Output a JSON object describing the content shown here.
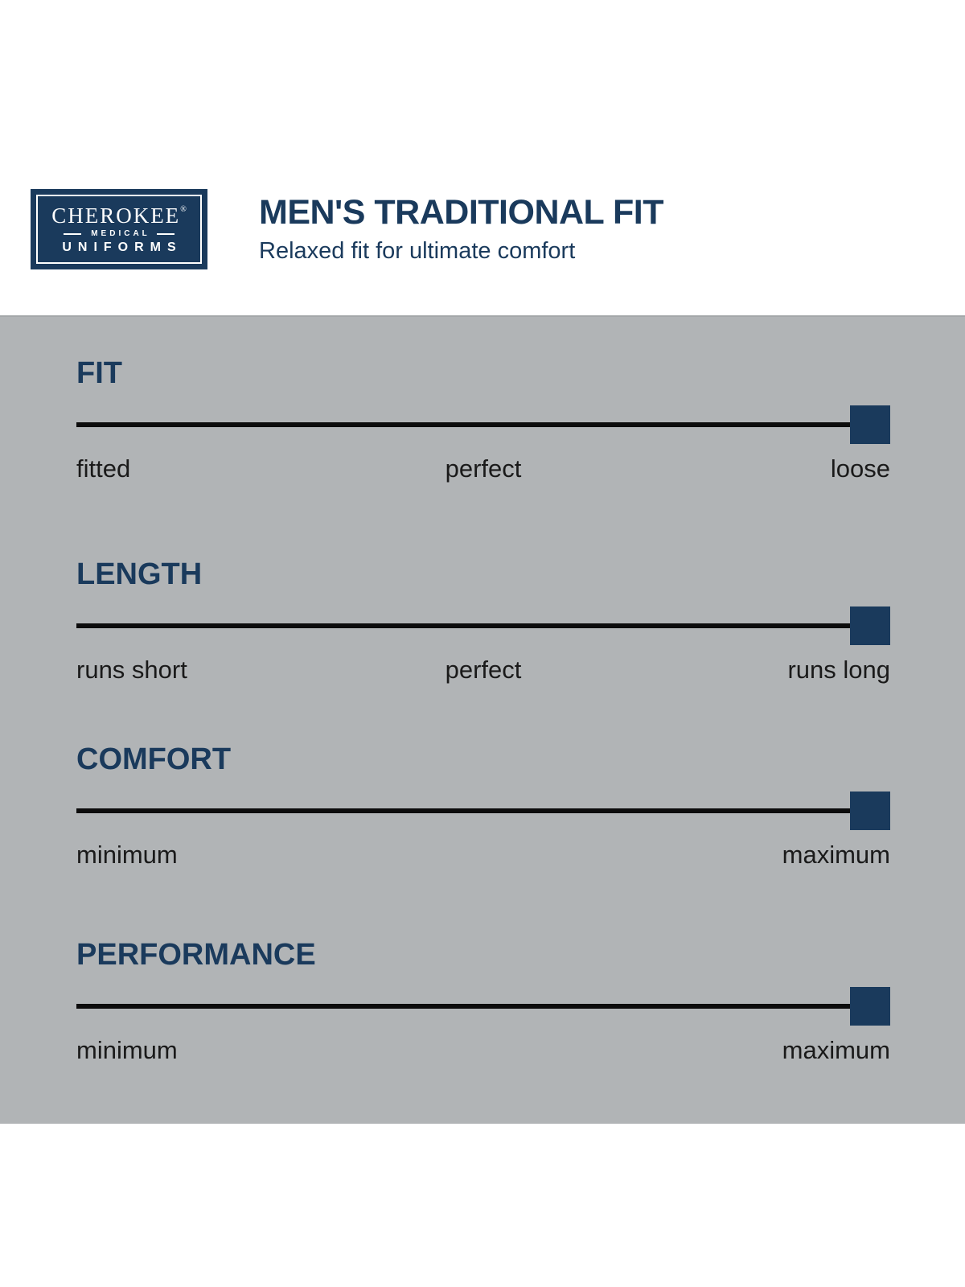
{
  "brand": {
    "name_line": "CHEROKEE",
    "registered_mark": "®",
    "sub_line": "MEDICAL",
    "bottom_line": "UNIFORMS"
  },
  "header": {
    "title": "MEN'S TRADITIONAL FIT",
    "subtitle": "Relaxed fit for ultimate comfort"
  },
  "colors": {
    "navy": "#1a3a5c",
    "panel_gray": "#b1b4b6",
    "track_black": "#0c0c0c",
    "label_text": "#1a1a1a"
  },
  "sections": [
    {
      "id": "fit",
      "heading": "FIT",
      "labels": [
        "fitted",
        "perfect",
        "loose"
      ],
      "marker_position": 1.0
    },
    {
      "id": "length",
      "heading": "LENGTH",
      "labels": [
        "runs short",
        "perfect",
        "runs long"
      ],
      "marker_position": 1.0
    },
    {
      "id": "comfort",
      "heading": "COMFORT",
      "labels": [
        "minimum",
        "maximum"
      ],
      "marker_position": 1.0
    },
    {
      "id": "performance",
      "heading": "PERFORMANCE",
      "labels": [
        "minimum",
        "maximum"
      ],
      "marker_position": 1.0
    }
  ]
}
